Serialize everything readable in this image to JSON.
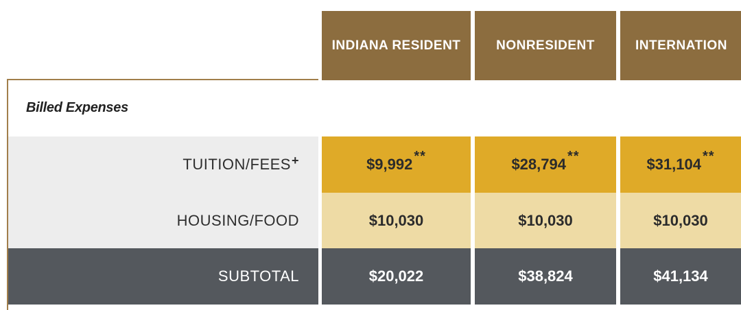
{
  "table": {
    "headers": [
      "INDIANA RESIDENT",
      "NONRESIDENT",
      "INTERNATION"
    ],
    "section_title": "Billed Expenses",
    "rows": [
      {
        "label": "TUITION/FEES",
        "label_note": "+",
        "values": [
          "$9,992",
          "$28,794",
          "$31,104"
        ],
        "value_note": "**"
      },
      {
        "label": "HOUSING/FOOD",
        "values": [
          "$10,030",
          "$10,030",
          "$10,030"
        ]
      },
      {
        "label": "SUBTOTAL",
        "values": [
          "$20,022",
          "$38,824",
          "$41,134"
        ]
      }
    ]
  },
  "colors": {
    "header_bg": "#8c6d3f",
    "tuition_bg": "#dfaa28",
    "housing_bg": "#eedba5",
    "subtotal_bg": "#54585d",
    "label_bg": "#ededed"
  }
}
